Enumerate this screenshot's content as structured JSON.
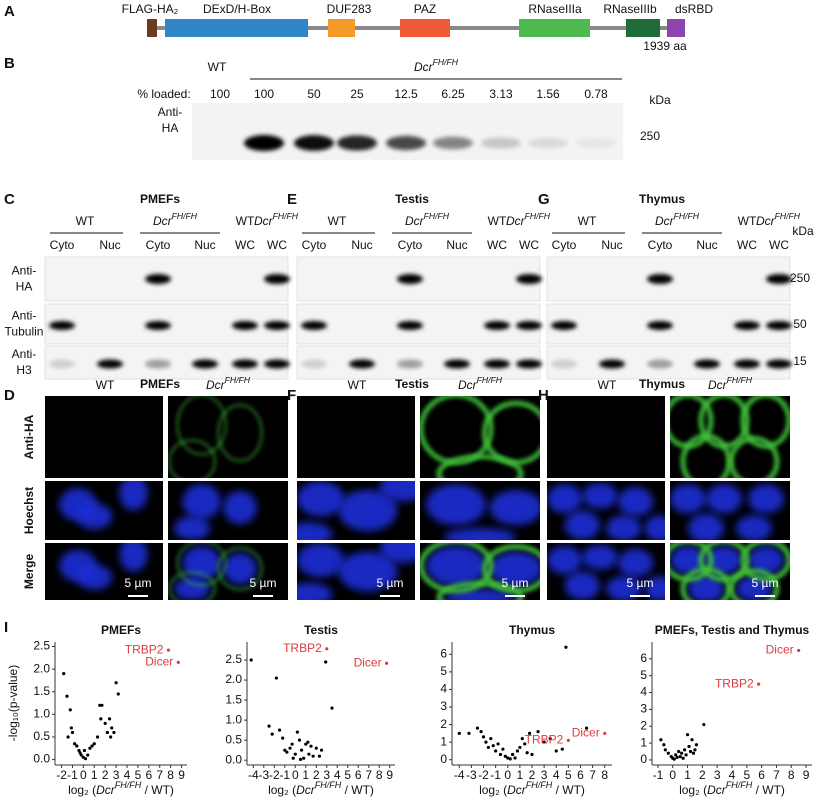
{
  "panel_a": {
    "letter": "A",
    "domains": [
      {
        "label": "FLAG-HA₂",
        "color": "#6b3a1e"
      },
      {
        "label": "DExD/H-Box",
        "color": "#2f86c6"
      },
      {
        "label": "DUF283",
        "color": "#f39a2b"
      },
      {
        "label": "PAZ",
        "color": "#ee5a35"
      },
      {
        "label": "RNaseIIIa",
        "color": "#4cba4f"
      },
      {
        "label": "RNaseIIIb",
        "color": "#1f6b3a"
      },
      {
        "label": "dsRBD",
        "color": "#8e44ad"
      }
    ],
    "length_label": "1939 aa"
  },
  "panel_b": {
    "letter": "B",
    "wt": "WT",
    "genotype": {
      "text": "Dcr",
      "sup": "FH/FH"
    },
    "loaded_label": "% loaded:",
    "loaded": [
      100,
      100,
      50,
      25,
      12.5,
      6.25,
      3.13,
      1.56,
      0.78
    ],
    "antibody": [
      "Anti-",
      "HA"
    ],
    "kda": "kDa",
    "marker": 250
  },
  "blots": [
    {
      "letter": "C",
      "title": "PMEFs",
      "wt": "WT",
      "genotype": {
        "text": "Dcr",
        "sup": "FH/FH"
      },
      "wt2": "WT",
      "genotype2": {
        "text": "Dcr",
        "sup": "FH/FH"
      },
      "lanes": [
        "Cyto",
        "Nuc",
        "Cyto",
        "Nuc",
        "WC",
        "WC"
      ]
    },
    {
      "letter": "E",
      "title": "Testis",
      "wt": "WT",
      "genotype": {
        "text": "Dcr",
        "sup": "FH/FH"
      },
      "wt2": "WT",
      "genotype2": {
        "text": "Dcr",
        "sup": "FH/FH"
      },
      "lanes": [
        "Cyto",
        "Nuc",
        "Cyto",
        "Nuc",
        "WC",
        "WC"
      ]
    },
    {
      "letter": "G",
      "title": "Thymus",
      "wt": "WT",
      "genotype": {
        "text": "Dcr",
        "sup": "FH/FH"
      },
      "wt2": "WT",
      "genotype2": {
        "text": "Dcr",
        "sup": "FH/FH"
      },
      "lanes": [
        "Cyto",
        "Nuc",
        "Cyto",
        "Nuc",
        "WC",
        "WC"
      ]
    }
  ],
  "blot_rows": [
    [
      "Anti-",
      "HA"
    ],
    [
      "Anti-",
      "Tubulin"
    ],
    [
      "Anti-",
      "H3"
    ]
  ],
  "blot_kda": "kDa",
  "blot_markers": [
    250,
    50,
    15
  ],
  "imaging": [
    {
      "letter": "D",
      "title": "PMEFs",
      "wt": "WT",
      "genotype": {
        "text": "Dcr",
        "sup": "FH/FH"
      },
      "scale": [
        "5 µm",
        "5 µm"
      ]
    },
    {
      "letter": "F",
      "title": "Testis",
      "wt": "WT",
      "genotype": {
        "text": "Dcr",
        "sup": "FH/FH"
      },
      "scale": [
        "5 µm",
        "5 µm"
      ]
    },
    {
      "letter": "H",
      "title": "Thymus",
      "wt": "WT",
      "genotype": {
        "text": "Dcr",
        "sup": "FH/FH"
      },
      "scale": [
        "5 µm",
        "5 µm"
      ]
    }
  ],
  "imaging_rows": [
    "Anti-HA",
    "Hoechst",
    "Merge"
  ],
  "panel_i_letter": "I",
  "chart_data": [
    {
      "type": "scatter",
      "title": "PMEFs",
      "ylabel": "-log₁₀(p-value)",
      "xlabel": {
        "pre": "log₂ (",
        "italic": "Dcr",
        "sup": "FH/FH",
        "post": " / WT)"
      },
      "color": "#000000",
      "highlight_color": "#e03a3e",
      "xlim": [
        -2.6,
        9.5
      ],
      "ylim": [
        -0.12,
        2.6
      ],
      "xticks": [
        -2,
        -1,
        0,
        1,
        2,
        3,
        4,
        5,
        6,
        7,
        8,
        9
      ],
      "yticks": [
        {
          "value": 0,
          "label": "0.0"
        },
        0.5,
        {
          "value": 1,
          "label": "1.0"
        },
        1.5,
        {
          "value": 2,
          "label": "2.0"
        },
        2.5
      ],
      "x": [
        -1.8,
        -1.5,
        -1.2,
        -1.4,
        -1.1,
        -1.0,
        -0.8,
        -0.6,
        -0.4,
        -0.2,
        0,
        0.2,
        0.4,
        0.6,
        0.8,
        1.0,
        1.3,
        1.5,
        1.7,
        1.6,
        2.0,
        2.2,
        2.4,
        2.6,
        2.8,
        3.0,
        3.2,
        2.5,
        0.1,
        -0.3,
        7.8,
        8.7
      ],
      "values": [
        1.9,
        1.4,
        1.1,
        0.5,
        0.7,
        0.6,
        0.35,
        0.3,
        0.2,
        0.1,
        0.05,
        0.02,
        0.1,
        0.25,
        0.3,
        0.35,
        0.5,
        1.2,
        1.2,
        0.9,
        0.8,
        0.6,
        0.9,
        0.7,
        0.6,
        1.7,
        1.45,
        0.5,
        0.2,
        0.15,
        2.42,
        2.15
      ],
      "point_labels": [
        null,
        null,
        null,
        null,
        null,
        null,
        null,
        null,
        null,
        null,
        null,
        null,
        null,
        null,
        null,
        null,
        null,
        null,
        null,
        null,
        null,
        null,
        null,
        null,
        null,
        null,
        null,
        null,
        null,
        null,
        "TRBP2",
        "Dicer"
      ]
    },
    {
      "type": "scatter",
      "title": "Testis",
      "xlabel": {
        "pre": "log₂ (",
        "italic": "Dcr",
        "sup": "FH/FH",
        "post": " / WT)"
      },
      "color": "#000000",
      "highlight_color": "#e03a3e",
      "xlim": [
        -4.6,
        9.5
      ],
      "ylim": [
        -0.12,
        2.95
      ],
      "xticks": [
        -4,
        -3,
        -2,
        -1,
        0,
        1,
        2,
        3,
        4,
        5,
        6,
        7,
        8,
        9
      ],
      "yticks": [
        {
          "value": 0,
          "label": "0.0"
        },
        0.5,
        {
          "value": 1,
          "label": "1.0"
        },
        1.5,
        {
          "value": 2,
          "label": "2.0"
        },
        2.5
      ],
      "x": [
        -4.2,
        -1.8,
        -2.5,
        -2.2,
        -1.5,
        -1.2,
        -1,
        -0.8,
        -0.5,
        -0.3,
        0,
        0.2,
        0.4,
        0.6,
        0.8,
        1.0,
        1.2,
        1.5,
        1.7,
        2.0,
        2.3,
        2.5,
        -0.2,
        0.5,
        1.3,
        3.5,
        2.9,
        3.0,
        8.7
      ],
      "values": [
        2.5,
        2.05,
        0.85,
        0.65,
        0.75,
        0.55,
        0.25,
        0.2,
        0.3,
        0.4,
        0.15,
        0.7,
        0.5,
        0.25,
        0.05,
        0.4,
        0.45,
        0.35,
        0.1,
        0.3,
        0.1,
        0.25,
        0.05,
        0.02,
        0.15,
        1.3,
        2.45,
        2.78,
        2.42
      ],
      "point_labels": [
        null,
        null,
        null,
        null,
        null,
        null,
        null,
        null,
        null,
        null,
        null,
        null,
        null,
        null,
        null,
        null,
        null,
        null,
        null,
        null,
        null,
        null,
        null,
        null,
        null,
        null,
        null,
        "TRBP2",
        "Dicer"
      ]
    },
    {
      "type": "scatter",
      "title": "Thymus",
      "xlabel": {
        "pre": "log₂ (",
        "italic": "Dcr",
        "sup": "FH/FH",
        "post": " / WT)"
      },
      "color": "#000000",
      "highlight_color": "#e03a3e",
      "xlim": [
        -4.6,
        8.6
      ],
      "ylim": [
        -0.3,
        6.7
      ],
      "xticks": [
        -4,
        -3,
        -2,
        -1,
        0,
        1,
        2,
        3,
        4,
        5,
        6,
        7,
        8
      ],
      "yticks": [
        0,
        1,
        2,
        3,
        4,
        5,
        6
      ],
      "x": [
        -4.0,
        -3.2,
        -2.5,
        -2.2,
        -2.0,
        -1.8,
        -1.6,
        -1.4,
        -1.2,
        -1.0,
        -0.8,
        -0.6,
        -0.4,
        -0.2,
        0,
        0.2,
        0.4,
        0.6,
        0.8,
        1.0,
        1.2,
        1.4,
        1.6,
        1.8,
        2.0,
        2.5,
        3.0,
        3.5,
        4.0,
        4.5,
        4.8,
        6.5,
        5.0,
        8.0
      ],
      "values": [
        1.5,
        1.5,
        1.8,
        1.6,
        1.3,
        1.0,
        0.7,
        1.2,
        0.8,
        0.5,
        0.9,
        0.3,
        0.6,
        0.2,
        0.1,
        0.05,
        0.3,
        0.1,
        0.5,
        0.7,
        1.2,
        0.9,
        0.4,
        1.5,
        0.3,
        1.6,
        1.0,
        1.2,
        0.5,
        0.6,
        6.4,
        1.8,
        1.1,
        1.5
      ],
      "point_labels": [
        null,
        null,
        null,
        null,
        null,
        null,
        null,
        null,
        null,
        null,
        null,
        null,
        null,
        null,
        null,
        null,
        null,
        null,
        null,
        null,
        null,
        null,
        null,
        null,
        null,
        null,
        null,
        null,
        null,
        null,
        null,
        null,
        "TRBP2",
        "Dicer"
      ]
    },
    {
      "type": "scatter",
      "title": "PMEFs, Testis and Thymus",
      "xlabel": {
        "pre": "log₂ (",
        "italic": "Dcr",
        "sup": "FH/FH",
        "post": " / WT)"
      },
      "color": "#000000",
      "highlight_color": "#e03a3e",
      "xlim": [
        -1.4,
        9.4
      ],
      "ylim": [
        -0.3,
        7
      ],
      "xticks": [
        -1,
        0,
        1,
        2,
        3,
        4,
        5,
        6,
        7,
        8,
        9
      ],
      "yticks": [
        0,
        1,
        2,
        3,
        4,
        5,
        6
      ],
      "x": [
        -0.8,
        -0.6,
        -0.5,
        -0.3,
        -0.1,
        0,
        0.1,
        0.2,
        0.3,
        0.4,
        0.5,
        0.6,
        0.7,
        0.8,
        0.9,
        1.0,
        1.1,
        1.2,
        1.3,
        1.4,
        1.5,
        1.6,
        2.1,
        5.8,
        8.5
      ],
      "values": [
        1.2,
        0.9,
        0.6,
        0.4,
        0.2,
        0.1,
        0.05,
        0.3,
        0.15,
        0.5,
        0.2,
        0.4,
        0.1,
        0.6,
        0.3,
        1.5,
        0.8,
        0.5,
        1.2,
        0.4,
        0.6,
        0.9,
        2.1,
        4.5,
        6.5
      ],
      "point_labels": [
        null,
        null,
        null,
        null,
        null,
        null,
        null,
        null,
        null,
        null,
        null,
        null,
        null,
        null,
        null,
        null,
        null,
        null,
        null,
        null,
        null,
        null,
        null,
        "TRBP2",
        "Dicer"
      ]
    }
  ]
}
